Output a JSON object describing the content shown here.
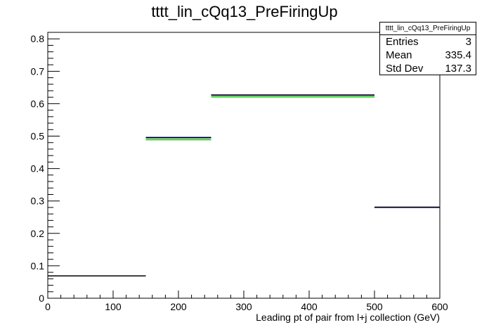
{
  "chart_data": {
    "type": "step",
    "title": "tttt_lin_cQq13_PreFiringUp",
    "xlabel": "Leading pt of pair from l+j collection (GeV)",
    "ylabel": "",
    "xlim": [
      0,
      600
    ],
    "ylim": [
      0,
      0.82
    ],
    "xticks": [
      "0",
      "100",
      "200",
      "300",
      "400",
      "500",
      "600"
    ],
    "yticks": [
      "0",
      "0.1",
      "0.2",
      "0.3",
      "0.4",
      "0.5",
      "0.6",
      "0.7",
      "0.8"
    ],
    "series": [
      {
        "color": "#000000",
        "bins": [
          {
            "x0": 0,
            "x1": 150,
            "y": 0.069
          },
          {
            "x0": 150,
            "x1": 250,
            "y": 0.495
          },
          {
            "x0": 250,
            "x1": 500,
            "y": 0.626
          },
          {
            "x0": 500,
            "x1": 600,
            "y": 0.281
          }
        ]
      },
      {
        "color": "#0000aa",
        "bins": [
          {
            "x0": 150,
            "x1": 250,
            "y": 0.496
          },
          {
            "x0": 250,
            "x1": 500,
            "y": 0.627
          },
          {
            "x0": 500,
            "x1": 600,
            "y": 0.28
          }
        ]
      },
      {
        "color": "#00cc00",
        "bins": [
          {
            "x0": 150,
            "x1": 250,
            "y": 0.489
          },
          {
            "x0": 250,
            "x1": 500,
            "y": 0.621
          }
        ]
      }
    ],
    "grid": false,
    "legend": "none"
  },
  "stats": {
    "title": "tttt_lin_cQq13_PreFiringUp",
    "rows": [
      {
        "label": "Entries",
        "value": "3"
      },
      {
        "label": "Mean",
        "value": "335.4"
      },
      {
        "label": "Std Dev",
        "value": "137.3"
      }
    ]
  }
}
